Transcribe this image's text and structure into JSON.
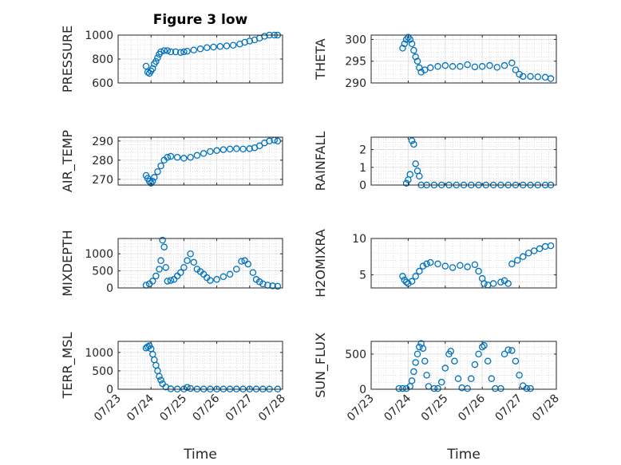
{
  "figure": {
    "title": "Figure 3 low",
    "marker_color": "#0072BD"
  },
  "chart_data": [
    {
      "type": "scatter",
      "panel": "pressure",
      "title": "Figure 3 low",
      "ylabel": "PRESSURE",
      "xlabel": "",
      "ylim": [
        600,
        1000
      ],
      "yticks": [
        600,
        800,
        1000
      ],
      "xlim": [
        "07/23",
        "07/28"
      ],
      "xticks": [
        "07/23",
        "07/24",
        "07/25",
        "07/26",
        "07/27",
        "07/28"
      ],
      "grid": true,
      "points": [
        [
          23.85,
          740
        ],
        [
          23.9,
          690
        ],
        [
          23.95,
          680
        ],
        [
          24.0,
          700
        ],
        [
          24.05,
          720
        ],
        [
          24.1,
          760
        ],
        [
          24.15,
          780
        ],
        [
          24.2,
          810
        ],
        [
          24.25,
          840
        ],
        [
          24.3,
          860
        ],
        [
          24.4,
          870
        ],
        [
          24.5,
          870
        ],
        [
          24.6,
          860
        ],
        [
          24.75,
          860
        ],
        [
          24.9,
          855
        ],
        [
          25.0,
          860
        ],
        [
          25.1,
          865
        ],
        [
          25.3,
          875
        ],
        [
          25.5,
          885
        ],
        [
          25.7,
          895
        ],
        [
          25.9,
          900
        ],
        [
          26.1,
          905
        ],
        [
          26.3,
          910
        ],
        [
          26.5,
          915
        ],
        [
          26.7,
          925
        ],
        [
          26.85,
          940
        ],
        [
          27.0,
          950
        ],
        [
          27.15,
          960
        ],
        [
          27.3,
          975
        ],
        [
          27.45,
          990
        ],
        [
          27.6,
          1000
        ],
        [
          27.75,
          1000
        ],
        [
          27.85,
          1000
        ]
      ]
    },
    {
      "type": "scatter",
      "panel": "theta",
      "ylabel": "THETA",
      "xlabel": "",
      "ylim": [
        290,
        301
      ],
      "yticks": [
        290,
        295,
        300
      ],
      "xlim": [
        "07/23",
        "07/28"
      ],
      "xticks": [
        "07/23",
        "07/24",
        "07/25",
        "07/26",
        "07/27",
        "07/28"
      ],
      "grid": true,
      "points": [
        [
          23.85,
          298
        ],
        [
          23.9,
          299
        ],
        [
          23.95,
          300
        ],
        [
          24.0,
          300.5
        ],
        [
          24.05,
          300
        ],
        [
          24.1,
          299
        ],
        [
          24.15,
          297.5
        ],
        [
          24.2,
          296
        ],
        [
          24.25,
          295
        ],
        [
          24.3,
          293.5
        ],
        [
          24.35,
          292.5
        ],
        [
          24.45,
          293
        ],
        [
          24.6,
          293.5
        ],
        [
          24.8,
          293.8
        ],
        [
          25.0,
          294
        ],
        [
          25.2,
          293.8
        ],
        [
          25.4,
          293.8
        ],
        [
          25.6,
          294.2
        ],
        [
          25.8,
          293.7
        ],
        [
          26.0,
          293.8
        ],
        [
          26.2,
          294
        ],
        [
          26.4,
          293.6
        ],
        [
          26.6,
          294
        ],
        [
          26.8,
          294.6
        ],
        [
          26.9,
          293
        ],
        [
          27.0,
          292
        ],
        [
          27.1,
          291.5
        ],
        [
          27.3,
          291.5
        ],
        [
          27.5,
          291.4
        ],
        [
          27.7,
          291.3
        ],
        [
          27.85,
          291
        ]
      ]
    },
    {
      "type": "scatter",
      "panel": "air_temp",
      "ylabel": "AIR_TEMP",
      "xlabel": "",
      "ylim": [
        267,
        292
      ],
      "yticks": [
        270,
        280,
        290
      ],
      "xlim": [
        "07/23",
        "07/28"
      ],
      "xticks": [
        "07/23",
        "07/24",
        "07/25",
        "07/26",
        "07/27",
        "07/28"
      ],
      "grid": true,
      "points": [
        [
          23.85,
          272
        ],
        [
          23.9,
          270.5
        ],
        [
          23.95,
          269
        ],
        [
          24.0,
          268
        ],
        [
          24.05,
          269
        ],
        [
          24.1,
          271
        ],
        [
          24.2,
          274
        ],
        [
          24.3,
          277
        ],
        [
          24.4,
          280
        ],
        [
          24.5,
          281.5
        ],
        [
          24.6,
          282
        ],
        [
          24.8,
          281.5
        ],
        [
          25.0,
          281
        ],
        [
          25.2,
          281.5
        ],
        [
          25.4,
          282.5
        ],
        [
          25.6,
          283.5
        ],
        [
          25.8,
          284.5
        ],
        [
          26.0,
          285
        ],
        [
          26.2,
          285.5
        ],
        [
          26.4,
          285.8
        ],
        [
          26.6,
          286
        ],
        [
          26.8,
          285.8
        ],
        [
          27.0,
          286
        ],
        [
          27.15,
          286.5
        ],
        [
          27.3,
          287.5
        ],
        [
          27.45,
          289
        ],
        [
          27.6,
          290
        ],
        [
          27.75,
          290.5
        ],
        [
          27.85,
          290
        ]
      ]
    },
    {
      "type": "scatter",
      "panel": "rainfall",
      "ylabel": "RAINFALL",
      "xlabel": "",
      "ylim": [
        0,
        2.7
      ],
      "yticks": [
        0,
        1,
        2
      ],
      "xlim": [
        "07/23",
        "07/28"
      ],
      "xticks": [
        "07/23",
        "07/24",
        "07/25",
        "07/26",
        "07/27",
        "07/28"
      ],
      "grid": true,
      "points": [
        [
          23.95,
          0.1
        ],
        [
          24.0,
          0.3
        ],
        [
          24.05,
          0.6
        ],
        [
          24.1,
          2.5
        ],
        [
          24.15,
          2.3
        ],
        [
          24.2,
          1.2
        ],
        [
          24.25,
          0.8
        ],
        [
          24.3,
          0.5
        ],
        [
          24.35,
          0
        ],
        [
          24.5,
          0
        ],
        [
          24.7,
          0
        ],
        [
          24.9,
          0
        ],
        [
          25.1,
          0
        ],
        [
          25.3,
          0
        ],
        [
          25.5,
          0
        ],
        [
          25.7,
          0
        ],
        [
          25.9,
          0
        ],
        [
          26.1,
          0
        ],
        [
          26.3,
          0
        ],
        [
          26.5,
          0
        ],
        [
          26.7,
          0
        ],
        [
          26.9,
          0
        ],
        [
          27.1,
          0
        ],
        [
          27.3,
          0
        ],
        [
          27.5,
          0
        ],
        [
          27.7,
          0
        ],
        [
          27.85,
          0
        ]
      ]
    },
    {
      "type": "scatter",
      "panel": "mixdepth",
      "ylabel": "MIXDEPTH",
      "xlabel": "",
      "ylim": [
        0,
        1450
      ],
      "yticks": [
        0,
        500,
        1000
      ],
      "xlim": [
        "07/23",
        "07/28"
      ],
      "xticks": [
        "07/23",
        "07/24",
        "07/25",
        "07/26",
        "07/27",
        "07/28"
      ],
      "grid": true,
      "points": [
        [
          23.85,
          80
        ],
        [
          23.95,
          120
        ],
        [
          24.05,
          200
        ],
        [
          24.15,
          350
        ],
        [
          24.25,
          550
        ],
        [
          24.3,
          800
        ],
        [
          24.35,
          1400
        ],
        [
          24.4,
          1200
        ],
        [
          24.45,
          600
        ],
        [
          24.5,
          200
        ],
        [
          24.6,
          220
        ],
        [
          24.7,
          250
        ],
        [
          24.8,
          350
        ],
        [
          24.9,
          450
        ],
        [
          25.0,
          600
        ],
        [
          25.1,
          800
        ],
        [
          25.2,
          1000
        ],
        [
          25.3,
          750
        ],
        [
          25.4,
          550
        ],
        [
          25.5,
          480
        ],
        [
          25.6,
          400
        ],
        [
          25.7,
          300
        ],
        [
          25.8,
          220
        ],
        [
          26.0,
          250
        ],
        [
          26.2,
          330
        ],
        [
          26.4,
          400
        ],
        [
          26.6,
          550
        ],
        [
          26.75,
          780
        ],
        [
          26.85,
          800
        ],
        [
          26.95,
          700
        ],
        [
          27.1,
          450
        ],
        [
          27.2,
          250
        ],
        [
          27.3,
          180
        ],
        [
          27.4,
          120
        ],
        [
          27.55,
          80
        ],
        [
          27.7,
          60
        ],
        [
          27.85,
          50
        ]
      ]
    },
    {
      "type": "scatter",
      "panel": "h2omixra",
      "ylabel": "H2OMIXRA",
      "xlabel": "",
      "ylim": [
        3.2,
        10
      ],
      "yticks": [
        5,
        10
      ],
      "xlim": [
        "07/23",
        "07/28"
      ],
      "xticks": [
        "07/23",
        "07/24",
        "07/25",
        "07/26",
        "07/27",
        "07/28"
      ],
      "grid": true,
      "points": [
        [
          23.85,
          4.8
        ],
        [
          23.9,
          4.3
        ],
        [
          23.95,
          4.0
        ],
        [
          24.0,
          3.8
        ],
        [
          24.1,
          4.1
        ],
        [
          24.2,
          4.8
        ],
        [
          24.3,
          5.5
        ],
        [
          24.4,
          6.2
        ],
        [
          24.5,
          6.5
        ],
        [
          24.6,
          6.7
        ],
        [
          24.8,
          6.5
        ],
        [
          25.0,
          6.2
        ],
        [
          25.2,
          6.0
        ],
        [
          25.4,
          6.3
        ],
        [
          25.6,
          6.1
        ],
        [
          25.8,
          6.4
        ],
        [
          25.9,
          5.5
        ],
        [
          26.0,
          4.5
        ],
        [
          26.05,
          3.8
        ],
        [
          26.15,
          3.6
        ],
        [
          26.3,
          3.8
        ],
        [
          26.5,
          4.0
        ],
        [
          26.6,
          4.2
        ],
        [
          26.7,
          3.8
        ],
        [
          26.8,
          6.5
        ],
        [
          26.95,
          7.0
        ],
        [
          27.1,
          7.5
        ],
        [
          27.25,
          8.0
        ],
        [
          27.4,
          8.3
        ],
        [
          27.55,
          8.6
        ],
        [
          27.7,
          8.9
        ],
        [
          27.85,
          9.0
        ]
      ]
    },
    {
      "type": "scatter",
      "panel": "terr_msl",
      "ylabel": "TERR_MSL",
      "xlabel": "Time",
      "ylim": [
        0,
        1300
      ],
      "yticks": [
        0,
        500,
        1000
      ],
      "xlim": [
        "07/23",
        "07/28"
      ],
      "xticks": [
        "07/23",
        "07/24",
        "07/25",
        "07/26",
        "07/27",
        "07/28"
      ],
      "grid": true,
      "points": [
        [
          23.85,
          1120
        ],
        [
          23.9,
          1150
        ],
        [
          23.95,
          1180
        ],
        [
          24.0,
          1100
        ],
        [
          24.05,
          950
        ],
        [
          24.1,
          800
        ],
        [
          24.15,
          650
        ],
        [
          24.2,
          500
        ],
        [
          24.25,
          350
        ],
        [
          24.3,
          250
        ],
        [
          24.35,
          150
        ],
        [
          24.45,
          60
        ],
        [
          24.6,
          10
        ],
        [
          24.8,
          5
        ],
        [
          25.0,
          5
        ],
        [
          25.1,
          50
        ],
        [
          25.2,
          20
        ],
        [
          25.4,
          5
        ],
        [
          25.6,
          5
        ],
        [
          25.8,
          5
        ],
        [
          26.0,
          5
        ],
        [
          26.2,
          5
        ],
        [
          26.4,
          5
        ],
        [
          26.6,
          5
        ],
        [
          26.8,
          5
        ],
        [
          27.0,
          5
        ],
        [
          27.2,
          5
        ],
        [
          27.4,
          5
        ],
        [
          27.6,
          5
        ],
        [
          27.85,
          5
        ]
      ]
    },
    {
      "type": "scatter",
      "panel": "sun_flux",
      "ylabel": "SUN_FLUX",
      "xlabel": "Time",
      "ylim": [
        0,
        680
      ],
      "yticks": [
        0,
        500
      ],
      "xlim": [
        "07/23",
        "07/28"
      ],
      "xticks": [
        "07/23",
        "07/24",
        "07/25",
        "07/26",
        "07/27",
        "07/28"
      ],
      "grid": true,
      "points": [
        [
          23.75,
          10
        ],
        [
          23.85,
          10
        ],
        [
          23.95,
          10
        ],
        [
          24.05,
          40
        ],
        [
          24.1,
          120
        ],
        [
          24.15,
          250
        ],
        [
          24.2,
          380
        ],
        [
          24.25,
          500
        ],
        [
          24.3,
          600
        ],
        [
          24.35,
          650
        ],
        [
          24.4,
          580
        ],
        [
          24.45,
          400
        ],
        [
          24.5,
          200
        ],
        [
          24.55,
          40
        ],
        [
          24.7,
          10
        ],
        [
          24.8,
          10
        ],
        [
          24.9,
          100
        ],
        [
          25.0,
          300
        ],
        [
          25.1,
          500
        ],
        [
          25.15,
          540
        ],
        [
          25.25,
          400
        ],
        [
          25.35,
          150
        ],
        [
          25.45,
          20
        ],
        [
          25.6,
          10
        ],
        [
          25.7,
          150
        ],
        [
          25.8,
          350
        ],
        [
          25.9,
          500
        ],
        [
          26.0,
          600
        ],
        [
          26.05,
          620
        ],
        [
          26.15,
          400
        ],
        [
          26.25,
          150
        ],
        [
          26.35,
          10
        ],
        [
          26.5,
          10
        ],
        [
          26.6,
          500
        ],
        [
          26.7,
          560
        ],
        [
          26.8,
          550
        ],
        [
          26.9,
          400
        ],
        [
          27.0,
          200
        ],
        [
          27.1,
          50
        ],
        [
          27.2,
          10
        ],
        [
          27.3,
          10
        ]
      ]
    }
  ]
}
